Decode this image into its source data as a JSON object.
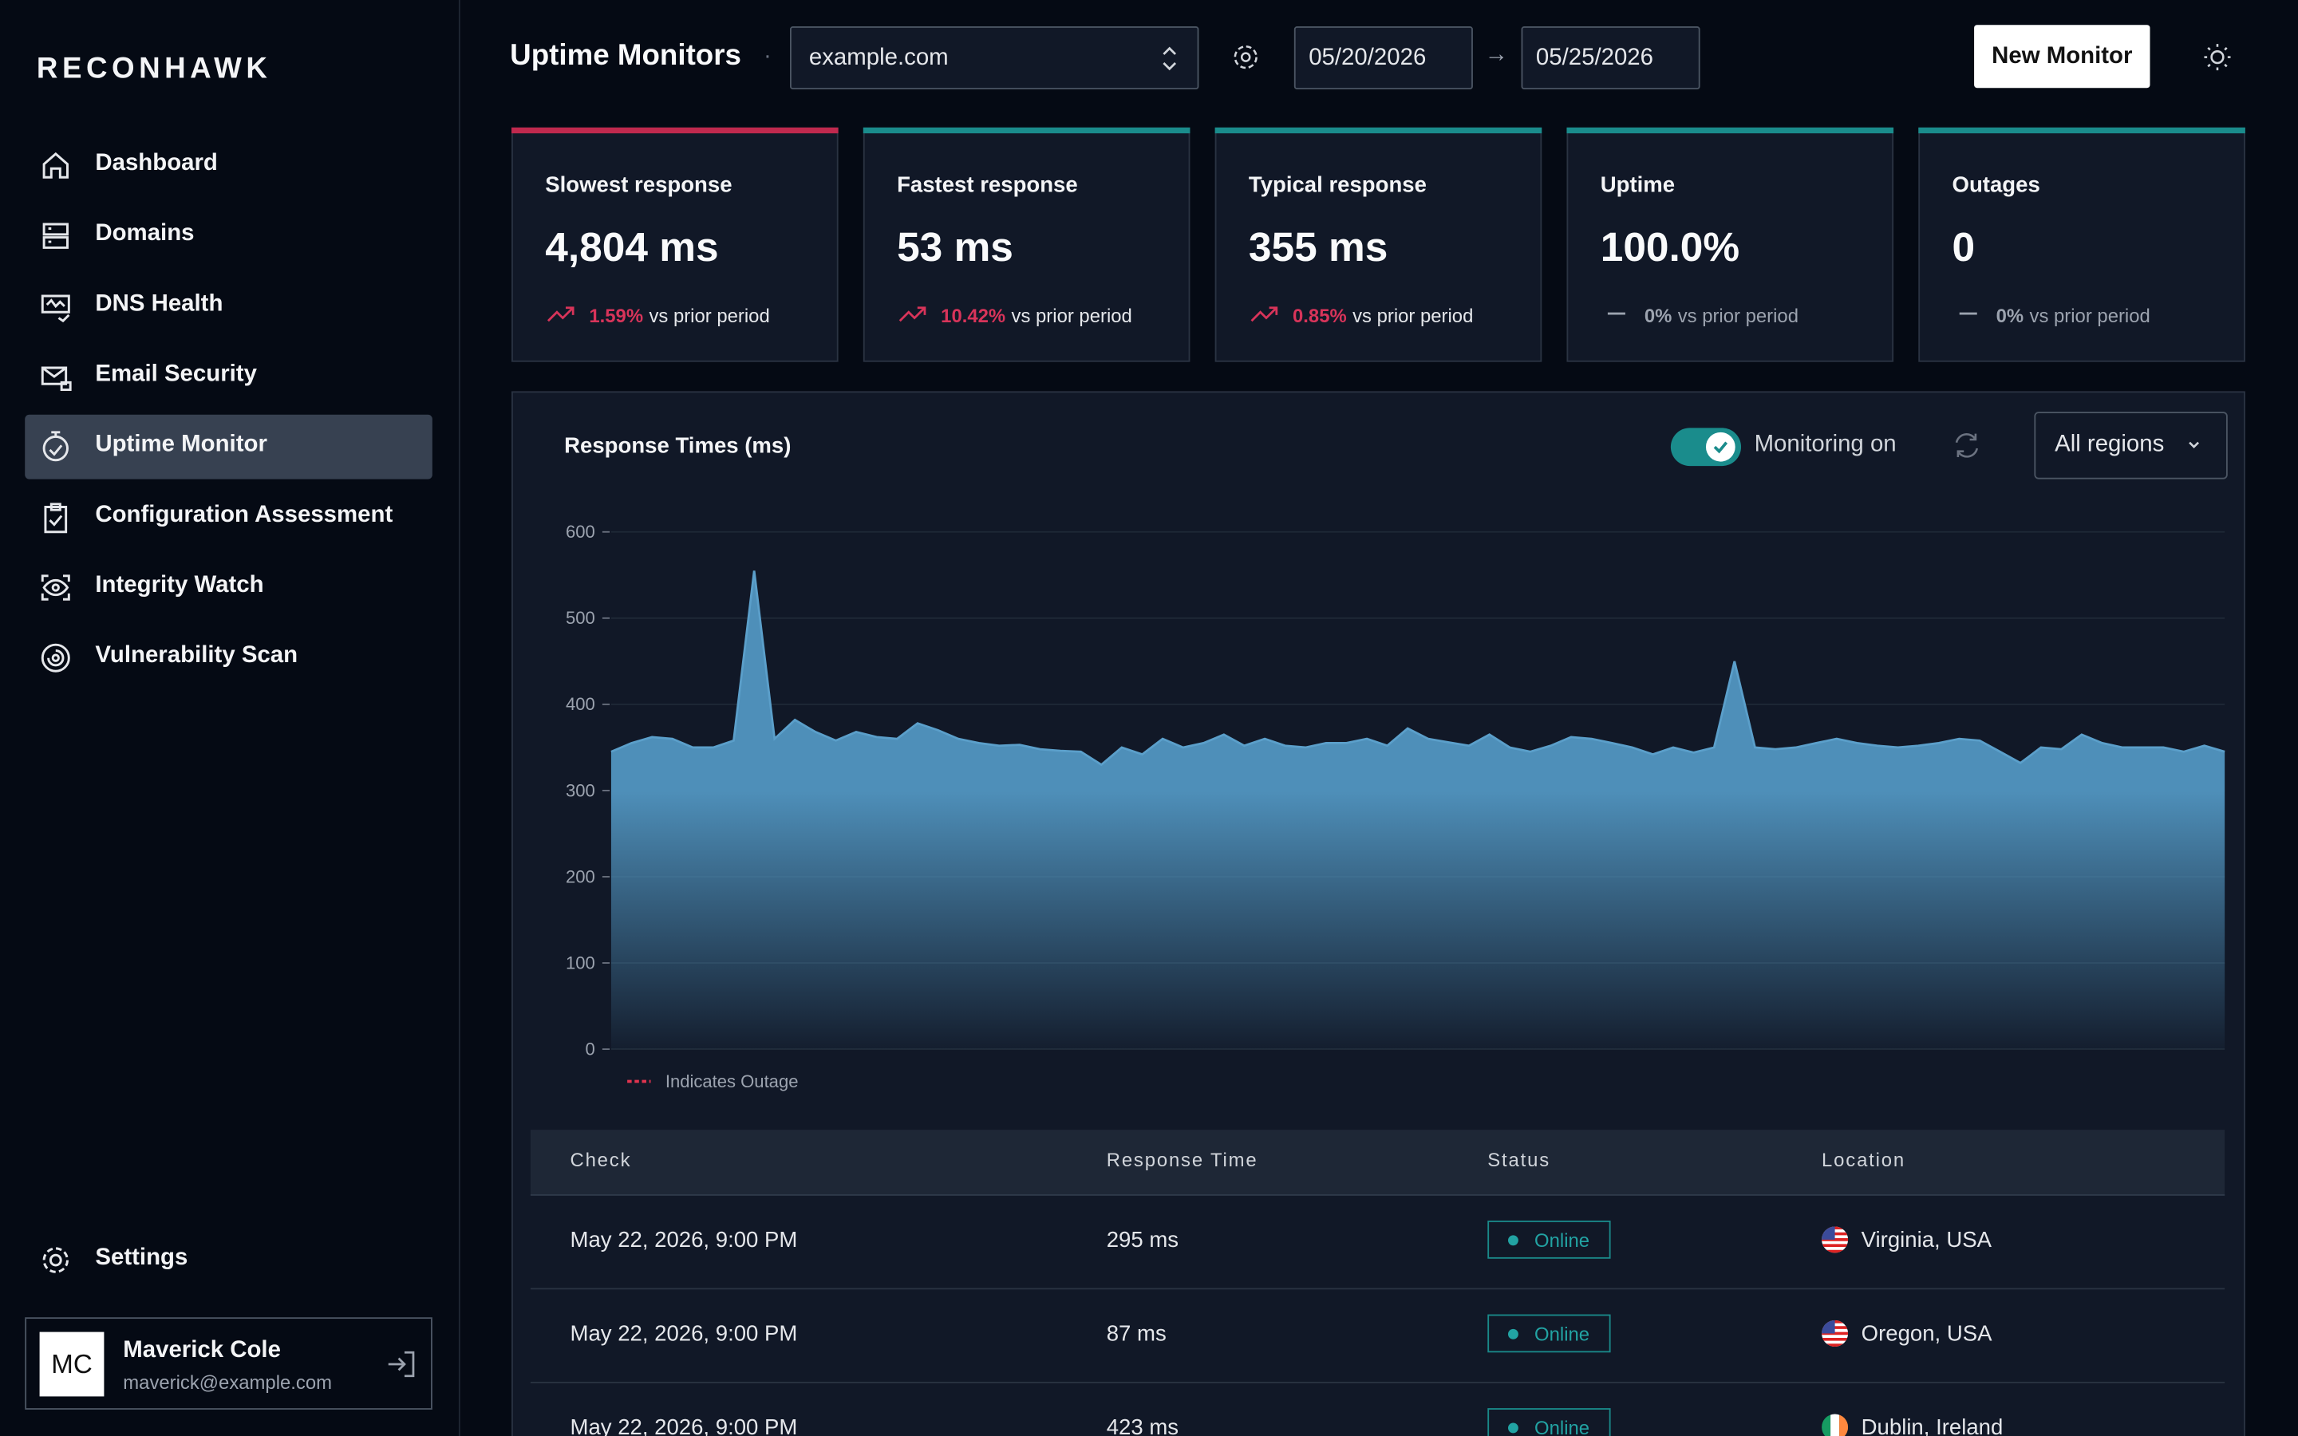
{
  "sidebar": {
    "brand": "RECONHAWK",
    "nav": [
      "Dashboard",
      "Domains",
      "DNS Health",
      "Email Security",
      "Uptime Monitor",
      "Configuration Assessment",
      "Integrity Watch",
      "Vulnerability Scan"
    ],
    "active": 4,
    "settings": "Settings",
    "user": {
      "initials": "MC",
      "name": "Maverick Cole",
      "email": "maverick@example.com"
    }
  },
  "header": {
    "title": "Uptime Monitors",
    "domain": "example.com",
    "date_from": "05/20/2026",
    "date_to": "05/25/2026",
    "new_button": "New Monitor"
  },
  "stats": [
    {
      "label": "Slowest response",
      "value": "4,804 ms",
      "change": "1.59%",
      "note": "vs prior period",
      "trend": "up",
      "accent": "#c0294e"
    },
    {
      "label": "Fastest response",
      "value": "53 ms",
      "change": "10.42%",
      "note": "vs prior period",
      "trend": "up",
      "accent": "#1a8c8c"
    },
    {
      "label": "Typical response",
      "value": "355 ms",
      "change": "0.85%",
      "note": "vs prior period",
      "trend": "up",
      "accent": "#1a8c8c"
    },
    {
      "label": "Uptime",
      "value": "100.0%",
      "change": "0%",
      "note": "vs prior period",
      "trend": "flat",
      "accent": "#1a8c8c"
    },
    {
      "label": "Outages",
      "value": "0",
      "change": "0%",
      "note": "vs prior period",
      "trend": "flat",
      "accent": "#1a8c8c"
    }
  ],
  "chart_data": {
    "type": "area",
    "title": "Response Times (ms)",
    "toggle": "Monitoring on",
    "region": "All regions",
    "legend": "Indicates Outage",
    "color": "#5b9fca",
    "values": [
      345,
      355,
      362,
      360,
      350,
      350,
      358,
      555,
      360,
      382,
      368,
      358,
      368,
      362,
      360,
      378,
      370,
      360,
      355,
      352,
      353,
      348,
      346,
      345,
      330,
      350,
      342,
      360,
      350,
      355,
      365,
      352,
      360,
      352,
      350,
      355,
      355,
      360,
      352,
      372,
      360,
      356,
      352,
      365,
      350,
      345,
      352,
      362,
      360,
      355,
      350,
      342,
      350,
      344,
      350,
      450,
      350,
      348,
      350,
      355,
      360,
      355,
      352,
      350,
      352,
      355,
      360,
      358,
      345,
      332,
      350,
      348,
      365,
      355,
      350,
      350,
      350,
      345,
      352,
      345
    ],
    "ylim": [
      0,
      600
    ],
    "yticks": [
      0,
      100,
      200,
      300,
      400,
      500,
      600
    ],
    "grid": true
  },
  "table": {
    "columns": [
      "Check",
      "Response Time",
      "Status",
      "Location"
    ],
    "rows": [
      [
        "May 22, 2026, 9:00 PM",
        "295 ms",
        "Online",
        "Virginia, USA"
      ],
      [
        "May 22, 2026, 9:00 PM",
        "87 ms",
        "Online",
        "Oregon, USA"
      ],
      [
        "May 22, 2026, 9:00 PM",
        "423 ms",
        "Online",
        "Dublin, Ireland"
      ]
    ]
  }
}
